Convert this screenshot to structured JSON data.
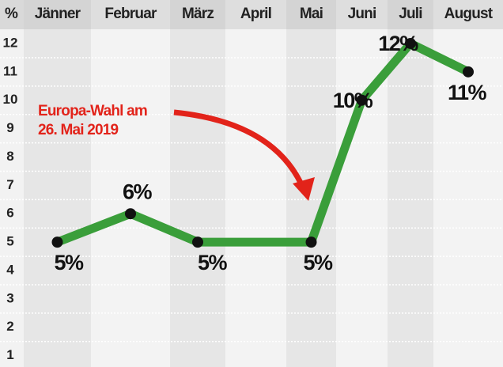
{
  "chart_data": {
    "type": "line",
    "y_label": "%",
    "annotation": [
      "Europa-Wahl am",
      "26. Mai 2019"
    ],
    "categories": [
      "Jänner",
      "Februar",
      "März",
      "April",
      "Mai",
      "Juni",
      "Juli",
      "August"
    ],
    "series": [
      {
        "x": [
          "Jänner",
          "Februar",
          "März",
          "Mai",
          "Juni",
          "Juli",
          "August"
        ],
        "values": [
          5,
          6,
          5,
          5,
          10,
          12,
          11
        ],
        "value_labels": [
          "5%",
          "6%",
          "5%",
          "5%",
          "10%",
          "12%",
          "11%"
        ],
        "color": "#3a9e3a",
        "marker_color": "#111111"
      }
    ],
    "ylim": [
      0.6,
      12.5
    ],
    "yticks": [
      1,
      2,
      3,
      4,
      5,
      6,
      7,
      8,
      9,
      10,
      11,
      12
    ]
  }
}
